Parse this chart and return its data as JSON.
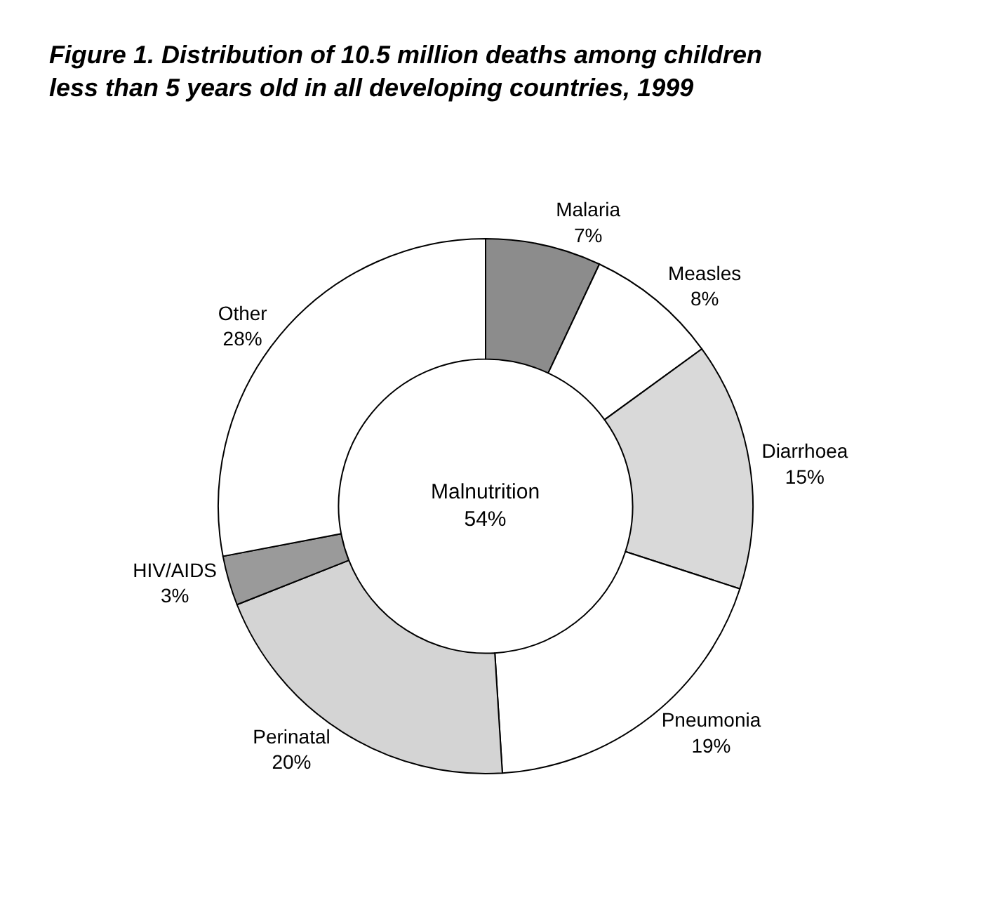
{
  "chart_data": {
    "type": "donut",
    "title": "Figure 1. Distribution of 10.5 million deaths among children\nless than 5 years old in all developing countries, 1999",
    "categories": [
      "Malaria",
      "Measles",
      "Diarrhoea",
      "Pneumonia",
      "Perinatal",
      "HIV/AIDS",
      "Other"
    ],
    "values": [
      7,
      8,
      15,
      19,
      20,
      3,
      28
    ],
    "value_labels": [
      "7%",
      "8%",
      "15%",
      "19%",
      "20%",
      "3%",
      "28%"
    ],
    "colors": [
      "#8c8c8c",
      "#ffffff",
      "#d9d9d9",
      "#ffffff",
      "#d4d4d4",
      "#9a9a9a",
      "#ffffff"
    ],
    "annotations": [
      "Malnutrition\n54%"
    ],
    "legend": false
  }
}
